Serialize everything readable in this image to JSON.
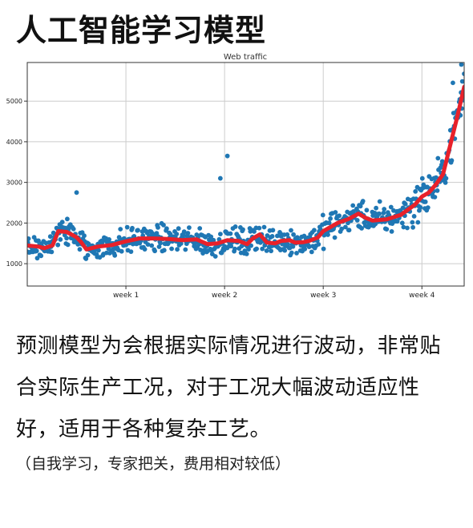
{
  "page_title": "人工智能学习模型",
  "description": "预测模型为会根据实际情况进行波动，非常贴合实际生产工况，对于工况大幅波动适应性好，适用于各种复杂工艺。",
  "note": "（自我学习，专家把关，费用相对较低）",
  "chart_data": {
    "type": "scatter",
    "title": "Web traffic",
    "xlabel": "",
    "ylabel": "",
    "xlim": [
      0,
      31
    ],
    "ylim": [
      450,
      5950
    ],
    "x_ticks": [
      {
        "value": 7,
        "label": "week 1"
      },
      {
        "value": 14,
        "label": "week 2"
      },
      {
        "value": 21,
        "label": "week 3"
      },
      {
        "value": 28,
        "label": "week 4"
      }
    ],
    "y_ticks": [
      1000,
      2000,
      3000,
      4000,
      5000
    ],
    "grid": true,
    "point_color": "#1f77b4",
    "line_color": "#e8212a",
    "trend_line": {
      "x": [
        0,
        0.8,
        1.2,
        1.8,
        2.2,
        2.8,
        3.5,
        3.8,
        4.2,
        5,
        6,
        7,
        8,
        9,
        10,
        11,
        12,
        12.8,
        13.5,
        14.2,
        15,
        15.6,
        16,
        16.5,
        17,
        17.6,
        18,
        18.6,
        19,
        19.6,
        20,
        20.6,
        21,
        22,
        22.8,
        23.5,
        24,
        24.5,
        25.5,
        26.5,
        27.5,
        28,
        28.5,
        29,
        29.5,
        30,
        30.5,
        31
      ],
      "y": [
        1450,
        1420,
        1380,
        1450,
        1800,
        1780,
        1650,
        1540,
        1350,
        1420,
        1460,
        1550,
        1620,
        1620,
        1610,
        1580,
        1600,
        1480,
        1500,
        1580,
        1560,
        1480,
        1620,
        1720,
        1520,
        1500,
        1560,
        1580,
        1520,
        1530,
        1560,
        1640,
        1800,
        2000,
        2100,
        2230,
        2130,
        2060,
        2090,
        2200,
        2450,
        2650,
        2750,
        2950,
        3200,
        3900,
        4600,
        5350
      ]
    },
    "points_note": "Approximately 700 daily traffic observations scattered around the trend line (spread about ±400 before week 3, wider afterwards), plus a few outliers: 3650 near week 2.2, 3100 near week 1.8, 2750 near week 0.9."
  }
}
